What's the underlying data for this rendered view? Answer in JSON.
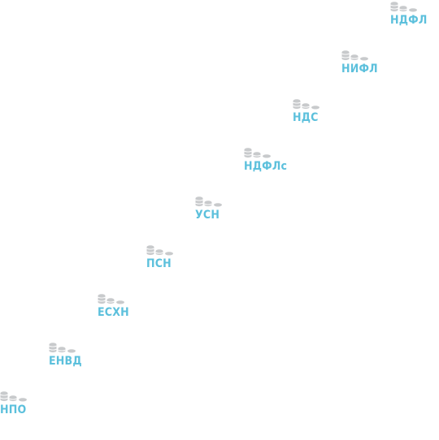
{
  "theme": {
    "label_color": "#5cc0dc",
    "icon_color": "#c8cacc"
  },
  "items": [
    {
      "label": "НДФЛ",
      "icon": "coins-icon"
    },
    {
      "label": "НИФЛ",
      "icon": "coins-icon"
    },
    {
      "label": "НДС",
      "icon": "coins-icon"
    },
    {
      "label": "НДФЛс",
      "icon": "coins-icon"
    },
    {
      "label": "УСН",
      "icon": "coins-icon"
    },
    {
      "label": "ПСН",
      "icon": "coins-icon"
    },
    {
      "label": "ЕСХН",
      "icon": "coins-icon"
    },
    {
      "label": "ЕНВД",
      "icon": "coins-icon"
    },
    {
      "label": "НПО",
      "icon": "coins-icon"
    }
  ]
}
